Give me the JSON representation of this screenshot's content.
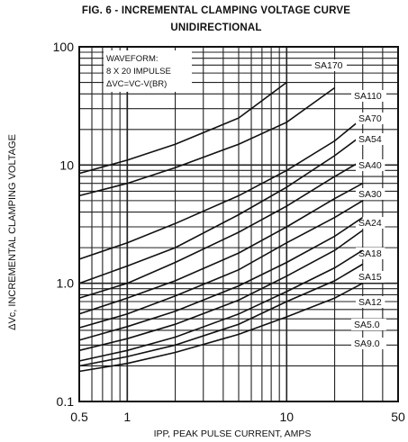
{
  "chart_data": {
    "type": "line",
    "title": "FIG. 6 - INCREMENTAL CLAMPING VOLTAGE CURVE",
    "subtitle": "UNIDIRECTIONAL",
    "xlabel": "IPP, PEAK PULSE CURRENT, AMPS",
    "ylabel": "ΔVc, INCREMENTAL CLAMPING  VOLTAGE",
    "x_scale": "log",
    "y_scale": "log",
    "xlim": [
      0.5,
      50
    ],
    "ylim": [
      0.1,
      100
    ],
    "x_ticks": [
      "0.5",
      "1",
      "10",
      "50"
    ],
    "y_ticks": [
      "0.1",
      "1.0",
      "10",
      "100"
    ],
    "grid": true,
    "annotation": [
      "WAVEFORM:",
      "8 X 20 IMPULSE",
      "ΔVC=VC-V(BR)"
    ],
    "series": [
      {
        "name": "SA170",
        "x": [
          0.5,
          1,
          2,
          5,
          10
        ],
        "y": [
          8.5,
          11,
          15,
          25,
          50
        ]
      },
      {
        "name": "SA110",
        "x": [
          0.5,
          1,
          2,
          5,
          10,
          20
        ],
        "y": [
          5.5,
          7,
          9.5,
          15,
          23,
          45
        ]
      },
      {
        "name": "SA70",
        "x": [
          0.5,
          1,
          2,
          5,
          10,
          20,
          30
        ],
        "y": [
          1.6,
          2.2,
          3.2,
          5.5,
          9,
          16,
          25
        ]
      },
      {
        "name": "SA54",
        "x": [
          0.5,
          1,
          2,
          5,
          10,
          20,
          30
        ],
        "y": [
          1.0,
          1.4,
          2.0,
          3.8,
          6.5,
          12,
          18
        ]
      },
      {
        "name": "SA40",
        "x": [
          0.5,
          1,
          2,
          5,
          10,
          20,
          30
        ],
        "y": [
          0.75,
          1.0,
          1.5,
          2.7,
          4.5,
          8,
          11
        ]
      },
      {
        "name": "SA30",
        "x": [
          0.5,
          1,
          2,
          5,
          10,
          20,
          30
        ],
        "y": [
          0.55,
          0.75,
          1.05,
          1.8,
          3.0,
          5.2,
          7
        ]
      },
      {
        "name": "SA24",
        "x": [
          0.5,
          1,
          2,
          5,
          10,
          20,
          30
        ],
        "y": [
          0.42,
          0.55,
          0.78,
          1.3,
          2.2,
          3.6,
          5
        ]
      },
      {
        "name": "SA18",
        "x": [
          0.5,
          1,
          2,
          5,
          10,
          20,
          30
        ],
        "y": [
          0.33,
          0.43,
          0.58,
          0.95,
          1.5,
          2.5,
          3.6
        ]
      },
      {
        "name": "SA15",
        "x": [
          0.5,
          1,
          2,
          5,
          10,
          20,
          30
        ],
        "y": [
          0.27,
          0.34,
          0.45,
          0.72,
          1.15,
          1.9,
          2.8
        ]
      },
      {
        "name": "SA12",
        "x": [
          0.5,
          1,
          2,
          5,
          10,
          20,
          30
        ],
        "y": [
          0.22,
          0.27,
          0.35,
          0.55,
          0.85,
          1.35,
          1.9
        ]
      },
      {
        "name": "SA5.0",
        "x": [
          0.5,
          1,
          2,
          5,
          10,
          20,
          30
        ],
        "y": [
          0.2,
          0.24,
          0.3,
          0.45,
          0.7,
          1.05,
          1.45
        ]
      },
      {
        "name": "SA9.0",
        "x": [
          0.5,
          1,
          2,
          5,
          10,
          20,
          30
        ],
        "y": [
          0.18,
          0.21,
          0.26,
          0.37,
          0.52,
          0.75,
          1.0
        ]
      }
    ]
  }
}
